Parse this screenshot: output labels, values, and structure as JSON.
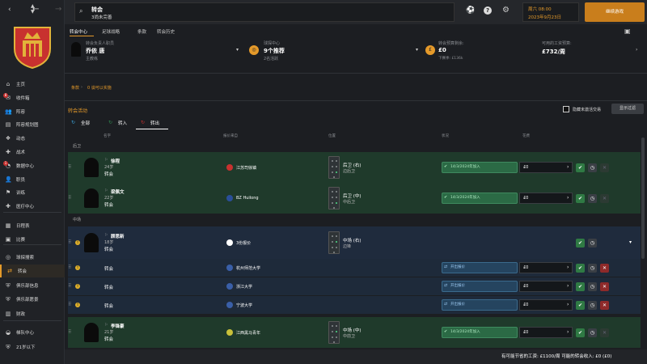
{
  "colors": {
    "accent": "#e59a2a",
    "green_row": "#1f3a2b",
    "blue_row": "#1f2b3d",
    "alert": "#c8312f"
  },
  "topbar": {
    "title": "转会",
    "subtitle": "3尚未完善",
    "date_line1": "周六 08:00",
    "date_line2": "2023年9月23日",
    "continue_label": "继续游戏"
  },
  "sidebar": {
    "items": [
      {
        "label": "主页",
        "icon": "home-icon"
      },
      {
        "label": "收件箱",
        "icon": "inbox-icon",
        "badge": "8"
      },
      {
        "label": "阵容",
        "icon": "squad-icon"
      },
      {
        "label": "阵容规划图",
        "icon": "squad-planner-icon"
      },
      {
        "label": "动态",
        "icon": "dynamics-icon"
      },
      {
        "label": "战术",
        "icon": "tactics-icon"
      },
      {
        "label": "数据中心",
        "icon": "data-hub-icon",
        "badge": "1"
      },
      {
        "label": "职员",
        "icon": "staff-icon"
      },
      {
        "label": "训练",
        "icon": "training-icon"
      },
      {
        "label": "医疗中心",
        "icon": "medical-icon"
      },
      {
        "label": "日程表",
        "icon": "calendar-icon"
      },
      {
        "label": "比赛",
        "icon": "match-icon"
      },
      {
        "label": "球探搜索",
        "icon": "scouting-icon"
      },
      {
        "label": "转会",
        "icon": "transfer-icon"
      },
      {
        "label": "俱乐部信息",
        "icon": "club-info-icon"
      },
      {
        "label": "俱乐部愿景",
        "icon": "club-vision-icon"
      },
      {
        "label": "财政",
        "icon": "finance-icon"
      },
      {
        "label": "梯队中心",
        "icon": "dev-centre-icon"
      },
      {
        "label": "21岁以下",
        "icon": "u21-icon"
      }
    ]
  },
  "tabs": [
    "转会中心",
    "足球战略",
    "条款",
    "转会历史"
  ],
  "cards": {
    "chief": {
      "label": "转会负责人职员",
      "name": "乔依 唐",
      "role": "主教练"
    },
    "scouting": {
      "label": "球探中心",
      "value": "9个推荐",
      "sub": "2名活跃"
    },
    "budget": {
      "label": "转会预算剩余:",
      "value": "£0",
      "sub": "下赛季: £136k"
    },
    "wage": {
      "label": "可用的工资预算:",
      "value": "£732/周"
    }
  },
  "breadcrumb": {
    "a": "条款",
    "b": "0 谈可以实施"
  },
  "activity": {
    "title": "转会活动",
    "checkbox_label": "隐藏未激活交易",
    "show_button": "显示过滤",
    "filters": [
      "全部",
      "转入",
      "转出"
    ],
    "columns": [
      "名字",
      "报价来自",
      "位置",
      "状况",
      "花费"
    ]
  },
  "groups": [
    "后卫",
    "中场"
  ],
  "rows": [
    {
      "name": "徐程",
      "age": "24岁",
      "type": "转会",
      "club": "江苏司徐镇",
      "pos": "后卫 (右)",
      "pos2": "边后卫",
      "status": "14/3/2024年加入",
      "fee": "£0"
    },
    {
      "name": "梁佩文",
      "age": "22岁",
      "type": "转会",
      "club": "BZ Huilong",
      "pos": "后卫 (中)",
      "pos2": "中后卫",
      "status": "14/3/2024年加入",
      "fee": "£0"
    },
    {
      "name": "顾思新",
      "age": "18岁",
      "type": "转会",
      "club": "3份报价",
      "pos": "中场 (右)",
      "pos2": "边锋",
      "status": "",
      "fee": ""
    },
    {
      "name": "",
      "age": "",
      "type": "转会",
      "club": "杭州师范大学",
      "pos": "",
      "pos2": "",
      "status": "开出报价",
      "fee": "£0"
    },
    {
      "name": "",
      "age": "",
      "type": "转会",
      "club": "浙江大学",
      "pos": "",
      "pos2": "",
      "status": "开出报价",
      "fee": "£0"
    },
    {
      "name": "",
      "age": "",
      "type": "转会",
      "club": "宁波大学",
      "pos": "",
      "pos2": "",
      "status": "开出报价",
      "fee": "£0"
    },
    {
      "name": "李锋豪",
      "age": "21岁",
      "type": "转会",
      "club": "江西黑马青年",
      "pos": "中场 (中)",
      "pos2": "中前卫",
      "status": "14/3/2024年加入",
      "fee": "£0"
    }
  ],
  "footer": {
    "text": "有可能节省的工资: £1100/周  可能的转会收入: £0 (£0)"
  }
}
